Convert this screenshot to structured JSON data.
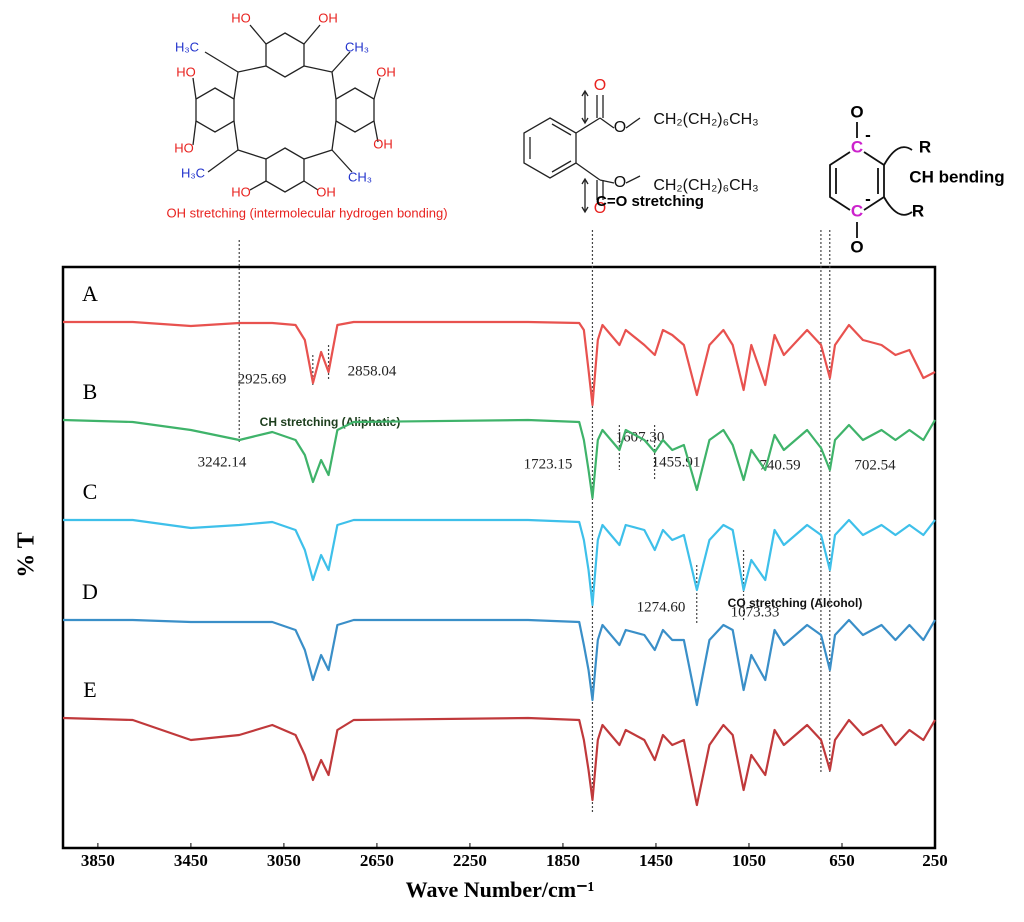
{
  "chart_data": {
    "type": "line",
    "xlabel": "Wave Number/cm⁻¹",
    "ylabel": "% T",
    "xlim": [
      4000,
      250
    ],
    "ylim": [
      0,
      580
    ],
    "xticks": [
      3850,
      3450,
      3050,
      2650,
      2250,
      1850,
      1450,
      1050,
      650,
      250
    ],
    "x": [
      4000,
      3700,
      3450,
      3242,
      3100,
      3000,
      2960,
      2925,
      2890,
      2858,
      2820,
      2750,
      2000,
      1780,
      1760,
      1740,
      1723,
      1700,
      1680,
      1607,
      1580,
      1500,
      1455,
      1420,
      1380,
      1330,
      1274,
      1220,
      1160,
      1120,
      1073,
      1040,
      980,
      940,
      900,
      800,
      740,
      702,
      680,
      620,
      560,
      480,
      420,
      360,
      300,
      250
    ],
    "series": [
      {
        "name": "A",
        "color": "#e8524f",
        "values": [
          526,
          526,
          522,
          525,
          525,
          523,
          508,
          465,
          496,
          476,
          523,
          526,
          526,
          525,
          518,
          478,
          443,
          508,
          523,
          503,
          518,
          503,
          493,
          518,
          513,
          503,
          453,
          503,
          518,
          503,
          458,
          503,
          463,
          513,
          493,
          518,
          503,
          470,
          503,
          523,
          508,
          503,
          493,
          498,
          470,
          476
        ]
      },
      {
        "name": "B",
        "color": "#3fb36a",
        "values": [
          428,
          426,
          418,
          408,
          416,
          408,
          393,
          366,
          388,
          373,
          418,
          426,
          428,
          426,
          408,
          378,
          350,
          408,
          418,
          398,
          418,
          408,
          396,
          408,
          398,
          403,
          358,
          408,
          418,
          403,
          368,
          398,
          378,
          413,
          398,
          418,
          400,
          378,
          408,
          423,
          408,
          418,
          408,
          418,
          408,
          428
        ]
      },
      {
        "name": "C",
        "color": "#3ec0ea",
        "values": [
          328,
          328,
          320,
          323,
          326,
          318,
          298,
          268,
          293,
          278,
          323,
          328,
          328,
          326,
          308,
          278,
          243,
          308,
          323,
          303,
          323,
          318,
          298,
          318,
          308,
          313,
          258,
          308,
          323,
          318,
          258,
          288,
          268,
          318,
          303,
          323,
          313,
          278,
          313,
          328,
          313,
          323,
          313,
          323,
          313,
          328
        ]
      },
      {
        "name": "D",
        "color": "#3a8fc8",
        "values": [
          228,
          228,
          226,
          226,
          226,
          218,
          198,
          168,
          193,
          178,
          223,
          228,
          228,
          226,
          203,
          178,
          148,
          208,
          223,
          203,
          218,
          213,
          198,
          218,
          208,
          208,
          143,
          208,
          223,
          218,
          158,
          193,
          168,
          218,
          203,
          223,
          213,
          178,
          213,
          228,
          213,
          223,
          208,
          223,
          208,
          228
        ]
      },
      {
        "name": "E",
        "color": "#c0393b",
        "values": [
          130,
          128,
          108,
          113,
          123,
          113,
          93,
          68,
          88,
          73,
          118,
          128,
          130,
          128,
          108,
          78,
          48,
          108,
          123,
          103,
          118,
          108,
          88,
          113,
          103,
          108,
          43,
          103,
          123,
          113,
          58,
          93,
          73,
          118,
          103,
          123,
          108,
          78,
          108,
          128,
          113,
          123,
          103,
          118,
          108,
          128
        ]
      }
    ],
    "peak_labels": [
      {
        "value": 2925.69,
        "label": "2925.69"
      },
      {
        "value": 2858.04,
        "label": "2858.04"
      },
      {
        "value": 3242.14,
        "label": "3242.14"
      },
      {
        "value": 1723.15,
        "label": "1723.15"
      },
      {
        "value": 1607.3,
        "label": "1607.30"
      },
      {
        "value": 1455.91,
        "label": "1455.91"
      },
      {
        "value": 740.59,
        "label": "740.59"
      },
      {
        "value": 702.54,
        "label": "702.54"
      },
      {
        "value": 1274.6,
        "label": "1274.60"
      },
      {
        "value": 1073.33,
        "label": "1073.33"
      }
    ],
    "annotations": [
      "OH stretching (intermolecular hydrogen bonding)",
      "C=O stretching",
      "CH bending",
      "CH stretching (Aliphatic)",
      "CO stretching (Alcohol)"
    ],
    "structures": {
      "calixarene": [
        "HO",
        "OH",
        "H₃C",
        "CH₃",
        "HO",
        "OH",
        "HO",
        "OH",
        "H₃C",
        "CH₃",
        "HO",
        "OH"
      ],
      "phthalate": [
        "O",
        "O",
        "CH₂(CH₂)₆CH₃",
        "O",
        "CH₂(CH₂)₆CH₃",
        "O"
      ],
      "quinone": [
        "O",
        "C",
        "-",
        "R",
        "C",
        "-",
        "R",
        "O"
      ]
    }
  }
}
